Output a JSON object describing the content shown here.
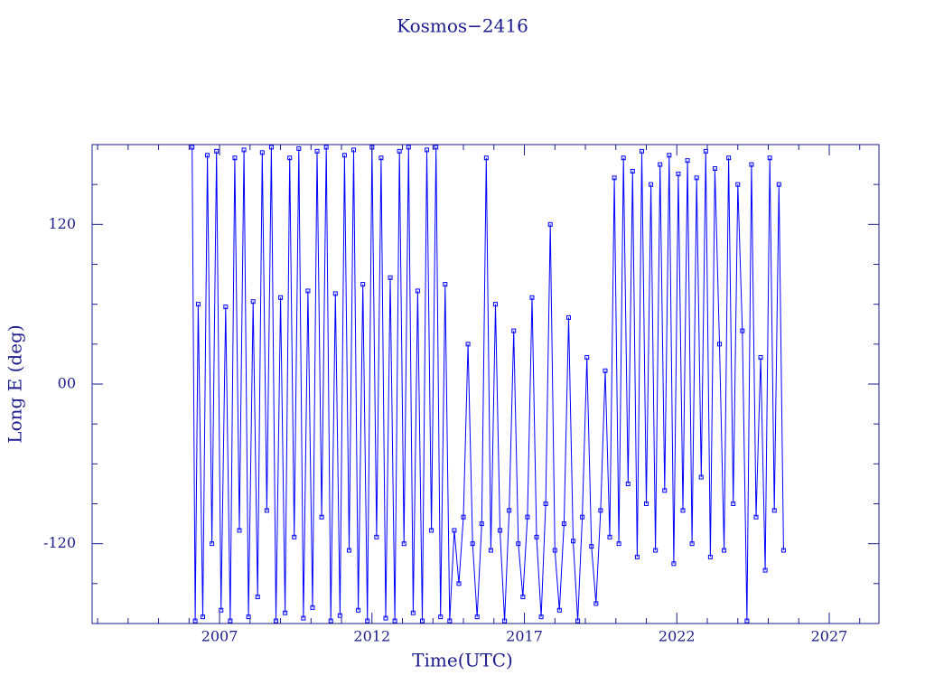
{
  "chart_data": {
    "type": "line",
    "title": "Kosmos−2416",
    "xlabel": "Time(UTC)",
    "ylabel": "Long E (deg)",
    "xlim": [
      2002.82,
      2028.63
    ],
    "xticks": [
      2007,
      2012,
      2017,
      2022,
      2027
    ],
    "xminor_ticks": [
      2003,
      2004,
      2005,
      2006,
      2008,
      2009,
      2010,
      2011,
      2013,
      2014,
      2015,
      2016,
      2018,
      2019,
      2020,
      2021,
      2023,
      2024,
      2025,
      2026,
      2028
    ],
    "ylim": [
      -180,
      180
    ],
    "yticks": [
      -120,
      {
        "value": 0,
        "label": "00"
      },
      120
    ],
    "yminor_ticks": [
      -150,
      -90,
      -60,
      -30,
      30,
      60,
      90,
      150
    ],
    "color": "#0000ff",
    "axis_color": "#1c1c8c",
    "x": [
      2006.1,
      2006.2,
      2006.3,
      2006.45,
      2006.6,
      2006.75,
      2006.9,
      2007.05,
      2007.2,
      2007.35,
      2007.5,
      2007.65,
      2007.8,
      2007.95,
      2008.1,
      2008.25,
      2008.4,
      2008.55,
      2008.7,
      2008.85,
      2009.0,
      2009.15,
      2009.3,
      2009.45,
      2009.6,
      2009.75,
      2009.9,
      2010.05,
      2010.2,
      2010.35,
      2010.5,
      2010.65,
      2010.8,
      2010.95,
      2011.1,
      2011.25,
      2011.4,
      2011.55,
      2011.7,
      2011.85,
      2012.0,
      2012.15,
      2012.3,
      2012.45,
      2012.6,
      2012.75,
      2012.9,
      2013.05,
      2013.2,
      2013.35,
      2013.5,
      2013.65,
      2013.8,
      2013.95,
      2014.1,
      2014.25,
      2014.4,
      2014.55,
      2014.7,
      2014.85,
      2015.0,
      2015.15,
      2015.3,
      2015.45,
      2015.6,
      2015.75,
      2015.9,
      2016.05,
      2016.2,
      2016.35,
      2016.5,
      2016.65,
      2016.8,
      2016.95,
      2017.1,
      2017.25,
      2017.4,
      2017.55,
      2017.7,
      2017.85,
      2018.0,
      2018.15,
      2018.3,
      2018.45,
      2018.6,
      2018.75,
      2018.9,
      2019.05,
      2019.2,
      2019.35,
      2019.5,
      2019.65,
      2019.8,
      2019.95,
      2020.1,
      2020.25,
      2020.4,
      2020.55,
      2020.7,
      2020.85,
      2021.0,
      2021.15,
      2021.3,
      2021.45,
      2021.6,
      2021.75,
      2021.9,
      2022.05,
      2022.2,
      2022.35,
      2022.5,
      2022.65,
      2022.8,
      2022.95,
      2023.1,
      2023.25,
      2023.4,
      2023.55,
      2023.7,
      2023.85,
      2024.0,
      2024.15,
      2024.3,
      2024.45,
      2024.6,
      2024.75,
      2024.9,
      2025.05,
      2025.2,
      2025.35,
      2025.5
    ],
    "values": [
      178,
      -178,
      60,
      -175,
      172,
      -120,
      175,
      -170,
      58,
      -178,
      170,
      -110,
      176,
      -175,
      62,
      -160,
      174,
      -95,
      178,
      -178,
      65,
      -172,
      170,
      -115,
      177,
      -176,
      70,
      -168,
      175,
      -100,
      178,
      -178,
      68,
      -174,
      172,
      -125,
      176,
      -170,
      75,
      -178,
      178,
      -115,
      170,
      -176,
      80,
      -178,
      175,
      -120,
      178,
      -172,
      70,
      -178,
      176,
      -110,
      178,
      -175,
      75,
      -178,
      -110,
      -150,
      -100,
      30,
      -120,
      -175,
      -105,
      170,
      -125,
      60,
      -110,
      -178,
      -95,
      40,
      -120,
      -160,
      -100,
      65,
      -115,
      -175,
      -90,
      120,
      -125,
      -170,
      -105,
      50,
      -118,
      -178,
      -100,
      20,
      -122,
      -165,
      -95,
      10,
      -115,
      155,
      -120,
      170,
      -75,
      160,
      -130,
      175,
      -90,
      150,
      -125,
      165,
      -80,
      172,
      -135,
      158,
      -95,
      168,
      -120,
      155,
      -70,
      175,
      -130,
      162,
      30,
      -125,
      170,
      -90,
      150,
      40,
      -178,
      165,
      -100,
      20,
      -140,
      170,
      -95,
      150,
      -125
    ]
  }
}
